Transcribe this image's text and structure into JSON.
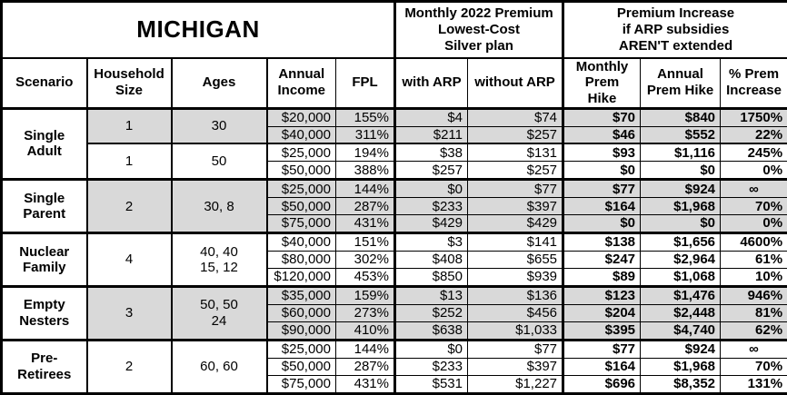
{
  "title": "MICHIGAN",
  "premium_header": "Monthly 2022 Premium\nLowest-Cost\nSilver plan",
  "increase_header": "Premium Increase\nif ARP subsidies\nAREN'T extended",
  "columns": {
    "scenario": "Scenario",
    "household_size": "Household\nSize",
    "ages": "Ages",
    "annual_income": "Annual\nIncome",
    "fpl": "FPL",
    "with_arp": "with ARP",
    "without_arp": "without ARP",
    "monthly_hike": "Monthly\nPrem Hike",
    "annual_hike": "Annual\nPrem Hike",
    "pct_increase": "% Prem\nIncrease"
  },
  "colors": {
    "shaded_row": "#d9d9d9",
    "border": "#000000",
    "background": "#ffffff"
  },
  "groups": [
    {
      "scenario": "Single\nAdult",
      "subgroups": [
        {
          "household_size": "1",
          "ages": "30",
          "shaded": true,
          "rows": [
            {
              "income": "$20,000",
              "fpl": "155%",
              "with_arp": "$4",
              "without_arp": "$74",
              "monthly_hike": "$70",
              "annual_hike": "$840",
              "pct_increase": "1750%"
            },
            {
              "income": "$40,000",
              "fpl": "311%",
              "with_arp": "$211",
              "without_arp": "$257",
              "monthly_hike": "$46",
              "annual_hike": "$552",
              "pct_increase": "22%"
            }
          ]
        },
        {
          "household_size": "1",
          "ages": "50",
          "shaded": false,
          "rows": [
            {
              "income": "$25,000",
              "fpl": "194%",
              "with_arp": "$38",
              "without_arp": "$131",
              "monthly_hike": "$93",
              "annual_hike": "$1,116",
              "pct_increase": "245%"
            },
            {
              "income": "$50,000",
              "fpl": "388%",
              "with_arp": "$257",
              "without_arp": "$257",
              "monthly_hike": "$0",
              "annual_hike": "$0",
              "pct_increase": "0%"
            }
          ]
        }
      ]
    },
    {
      "scenario": "Single\nParent",
      "subgroups": [
        {
          "household_size": "2",
          "ages": "30, 8",
          "shaded": true,
          "rows": [
            {
              "income": "$25,000",
              "fpl": "144%",
              "with_arp": "$0",
              "without_arp": "$77",
              "monthly_hike": "$77",
              "annual_hike": "$924",
              "pct_increase": "∞"
            },
            {
              "income": "$50,000",
              "fpl": "287%",
              "with_arp": "$233",
              "without_arp": "$397",
              "monthly_hike": "$164",
              "annual_hike": "$1,968",
              "pct_increase": "70%"
            },
            {
              "income": "$75,000",
              "fpl": "431%",
              "with_arp": "$429",
              "without_arp": "$429",
              "monthly_hike": "$0",
              "annual_hike": "$0",
              "pct_increase": "0%"
            }
          ]
        }
      ]
    },
    {
      "scenario": "Nuclear\nFamily",
      "subgroups": [
        {
          "household_size": "4",
          "ages": "40, 40\n15, 12",
          "shaded": false,
          "rows": [
            {
              "income": "$40,000",
              "fpl": "151%",
              "with_arp": "$3",
              "without_arp": "$141",
              "monthly_hike": "$138",
              "annual_hike": "$1,656",
              "pct_increase": "4600%"
            },
            {
              "income": "$80,000",
              "fpl": "302%",
              "with_arp": "$408",
              "without_arp": "$655",
              "monthly_hike": "$247",
              "annual_hike": "$2,964",
              "pct_increase": "61%"
            },
            {
              "income": "$120,000",
              "fpl": "453%",
              "with_arp": "$850",
              "without_arp": "$939",
              "monthly_hike": "$89",
              "annual_hike": "$1,068",
              "pct_increase": "10%"
            }
          ]
        }
      ]
    },
    {
      "scenario": "Empty\nNesters",
      "subgroups": [
        {
          "household_size": "3",
          "ages": "50, 50\n24",
          "shaded": true,
          "rows": [
            {
              "income": "$35,000",
              "fpl": "159%",
              "with_arp": "$13",
              "without_arp": "$136",
              "monthly_hike": "$123",
              "annual_hike": "$1,476",
              "pct_increase": "946%"
            },
            {
              "income": "$60,000",
              "fpl": "273%",
              "with_arp": "$252",
              "without_arp": "$456",
              "monthly_hike": "$204",
              "annual_hike": "$2,448",
              "pct_increase": "81%"
            },
            {
              "income": "$90,000",
              "fpl": "410%",
              "with_arp": "$638",
              "without_arp": "$1,033",
              "monthly_hike": "$395",
              "annual_hike": "$4,740",
              "pct_increase": "62%"
            }
          ]
        }
      ]
    },
    {
      "scenario": "Pre-\nRetirees",
      "subgroups": [
        {
          "household_size": "2",
          "ages": "60, 60",
          "shaded": false,
          "rows": [
            {
              "income": "$25,000",
              "fpl": "144%",
              "with_arp": "$0",
              "without_arp": "$77",
              "monthly_hike": "$77",
              "annual_hike": "$924",
              "pct_increase": "∞"
            },
            {
              "income": "$50,000",
              "fpl": "287%",
              "with_arp": "$233",
              "without_arp": "$397",
              "monthly_hike": "$164",
              "annual_hike": "$1,968",
              "pct_increase": "70%"
            },
            {
              "income": "$75,000",
              "fpl": "431%",
              "with_arp": "$531",
              "without_arp": "$1,227",
              "monthly_hike": "$696",
              "annual_hike": "$8,352",
              "pct_increase": "131%"
            }
          ]
        }
      ]
    }
  ]
}
